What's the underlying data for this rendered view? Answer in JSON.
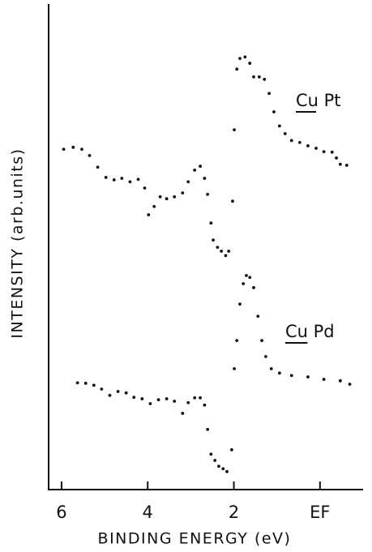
{
  "chart_data": {
    "type": "scatter",
    "xlabel": "BINDING ENERGY   (eV)",
    "ylabel": "INTENSITY  (arb.units)",
    "xlim": [
      6.3,
      -1.0
    ],
    "ylim": [
      0,
      100
    ],
    "xticks": [
      6,
      4,
      2,
      {
        "value": 0,
        "label": "EF"
      }
    ],
    "series": [
      {
        "name": "Cu Pt",
        "color": "#111111",
        "x": [
          5.95,
          5.73,
          5.53,
          5.35,
          5.16,
          4.97,
          4.78,
          4.6,
          4.41,
          4.22,
          4.07,
          3.98,
          3.85,
          3.71,
          3.56,
          3.38,
          3.19,
          3.06,
          2.91,
          2.78,
          2.68,
          2.61,
          2.53,
          2.48,
          2.38,
          2.29,
          2.19,
          2.12,
          2.03,
          1.99,
          1.93,
          1.86,
          1.74,
          1.63,
          1.54,
          1.41,
          1.29,
          1.18,
          1.07,
          0.94,
          0.81,
          0.66,
          0.47,
          0.28,
          0.09,
          -0.09,
          -0.28,
          -0.38,
          -0.47,
          -0.62
        ],
        "values": [
          70.1,
          70.5,
          70.1,
          68.8,
          66.4,
          64.3,
          63.8,
          64.1,
          63.4,
          63.9,
          62.1,
          56.6,
          58.3,
          60.3,
          59.9,
          60.3,
          61.1,
          63.4,
          65.8,
          66.6,
          64.1,
          60.8,
          54.9,
          51.4,
          49.9,
          49.1,
          48.2,
          49.1,
          59.4,
          74.1,
          86.6,
          88.8,
          89.1,
          87.8,
          85.0,
          85.0,
          84.5,
          81.6,
          77.8,
          74.9,
          73.3,
          71.9,
          71.5,
          70.8,
          70.3,
          69.6,
          69.5,
          68.3,
          67.0,
          66.8
        ]
      },
      {
        "name": "Cu Pd",
        "color": "#111111",
        "x": [
          5.63,
          5.44,
          5.25,
          5.07,
          4.88,
          4.69,
          4.5,
          4.32,
          4.13,
          3.94,
          3.75,
          3.56,
          3.38,
          3.19,
          3.06,
          2.91,
          2.78,
          2.68,
          2.61,
          2.53,
          2.44,
          2.35,
          2.25,
          2.16,
          2.05,
          1.99,
          1.93,
          1.86,
          1.78,
          1.71,
          1.63,
          1.54,
          1.44,
          1.35,
          1.26,
          1.13,
          0.94,
          0.66,
          0.28,
          -0.09,
          -0.47,
          -0.69
        ],
        "values": [
          22.0,
          21.9,
          21.5,
          20.7,
          19.4,
          20.2,
          19.9,
          19.0,
          18.7,
          17.7,
          18.5,
          18.7,
          18.2,
          15.7,
          17.9,
          18.9,
          18.9,
          17.4,
          12.4,
          7.3,
          6.0,
          4.8,
          4.3,
          3.7,
          8.2,
          24.9,
          30.7,
          38.2,
          42.4,
          44.1,
          43.7,
          41.6,
          35.7,
          30.7,
          27.4,
          24.9,
          24.0,
          23.5,
          23.2,
          22.7,
          22.4,
          21.7
        ]
      }
    ]
  }
}
